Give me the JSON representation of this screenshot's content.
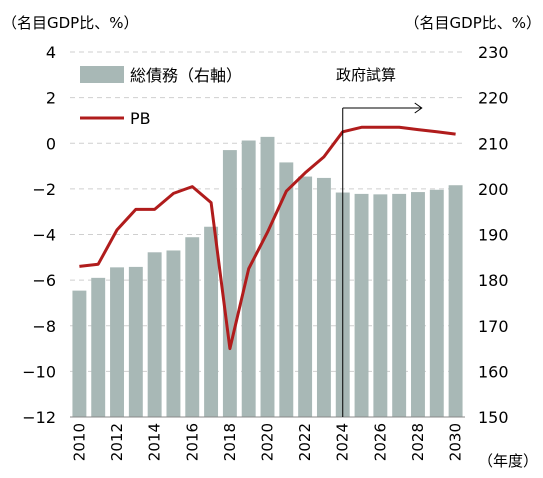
{
  "chart_data": {
    "type": "bar",
    "left_axis_label": "（名目GDP比、%）",
    "right_axis_label": "（名目GDP比、%）",
    "x_unit_label": "（年度）",
    "annotation": "政府試算",
    "annotation_from_year": 2024.5,
    "annotation_arrow_to_year": 2028.2,
    "left_ylim": [
      -12,
      4
    ],
    "left_ticks": [
      4,
      2,
      0,
      -2,
      -4,
      -6,
      -8,
      -10,
      -12
    ],
    "left_tick_labels": [
      "4",
      "2",
      "0",
      "−2",
      "−4",
      "−6",
      "−8",
      "−10",
      "−12"
    ],
    "right_ylim": [
      150,
      230
    ],
    "right_ticks": [
      230,
      220,
      210,
      200,
      190,
      180,
      170,
      160,
      150
    ],
    "right_tick_labels": [
      "230",
      "220",
      "210",
      "200",
      "190",
      "180",
      "170",
      "160",
      "150"
    ],
    "x": [
      2010,
      2011,
      2012,
      2013,
      2014,
      2015,
      2016,
      2017,
      2018,
      2019,
      2020,
      2021,
      2022,
      2023,
      2024,
      2025,
      2026,
      2027,
      2028,
      2029,
      2030
    ],
    "x_tick_labels": [
      "2010",
      "2012",
      "2014",
      "2016",
      "2018",
      "2020",
      "2022",
      "2024",
      "2026",
      "2028",
      "2030"
    ],
    "x_tick_values": [
      2010,
      2012,
      2014,
      2016,
      2018,
      2020,
      2022,
      2024,
      2026,
      2028,
      2030
    ],
    "grid": "horizontal dashed",
    "legend_position": "top-left",
    "series": [
      {
        "name": "総債務（右軸）",
        "kind": "bar",
        "axis": "right",
        "color": "#a8b8b6",
        "values": [
          177.7,
          180.5,
          182.8,
          182.9,
          186.1,
          186.5,
          189.4,
          191.7,
          208.5,
          210.6,
          211.4,
          205.8,
          202.7,
          202.4,
          199.2,
          198.9,
          198.8,
          198.9,
          199.3,
          199.8,
          200.8
        ]
      },
      {
        "name": "PB",
        "kind": "line",
        "axis": "left",
        "color": "#b01c1c",
        "values": [
          -5.4,
          -5.3,
          -3.8,
          -2.9,
          -2.9,
          -2.2,
          -1.9,
          -2.6,
          -9.0,
          -5.5,
          -3.9,
          -2.1,
          -1.3,
          -0.6,
          0.5,
          0.7,
          0.7,
          0.7,
          0.6,
          0.5,
          0.4
        ]
      }
    ]
  }
}
